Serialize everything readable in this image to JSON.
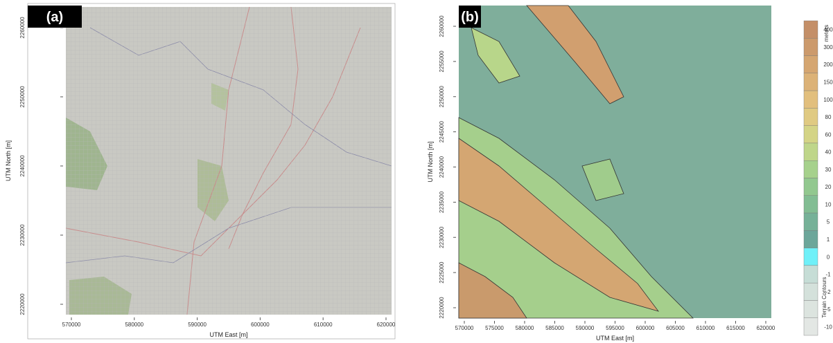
{
  "panels": [
    {
      "label": "(a)",
      "x_axis_label": "UTM East [m]",
      "y_axis_label": "UTM North [m]",
      "x_ticks": [
        "570000",
        "580000",
        "590000",
        "600000",
        "610000",
        "620000"
      ],
      "y_ticks": [
        "2260000",
        "2250000",
        "2240000",
        "2230000",
        "2220000"
      ]
    },
    {
      "label": "(b)",
      "x_axis_label": "UTM East [m]",
      "y_axis_label": "UTM North [m]",
      "x_ticks": [
        "570000",
        "575000",
        "580000",
        "585000",
        "590000",
        "595000",
        "600000",
        "605000",
        "610000",
        "615000",
        "620000"
      ],
      "y_ticks": [
        "2260000",
        "2255000",
        "2250000",
        "2245000",
        "2240000",
        "2235000",
        "2230000",
        "2225000",
        "2220000"
      ]
    }
  ],
  "legend": {
    "title": "meters",
    "footer": "Terrain Contours",
    "entries": [
      {
        "label": "400",
        "color": "#c48f68"
      },
      {
        "label": "300",
        "color": "#cc9a6c"
      },
      {
        "label": "200",
        "color": "#d5a671"
      },
      {
        "label": "150",
        "color": "#dcb277"
      },
      {
        "label": "100",
        "color": "#e2bf7d"
      },
      {
        "label": "80",
        "color": "#e0ca82"
      },
      {
        "label": "60",
        "color": "#d4d486"
      },
      {
        "label": "40",
        "color": "#bfd68a"
      },
      {
        "label": "30",
        "color": "#a6d18c"
      },
      {
        "label": "20",
        "color": "#92c88f"
      },
      {
        "label": "10",
        "color": "#82bd93"
      },
      {
        "label": "5",
        "color": "#76b198"
      },
      {
        "label": "1",
        "color": "#6ca69a"
      },
      {
        "label": "0",
        "color": "#6ff0f8"
      },
      {
        "label": "-1",
        "color": "#c6ddd6"
      },
      {
        "label": "-2",
        "color": "#d4e1db"
      },
      {
        "label": "-5",
        "color": "#dce4df"
      },
      {
        "label": "-10",
        "color": "#e3e7e4"
      }
    ]
  }
}
